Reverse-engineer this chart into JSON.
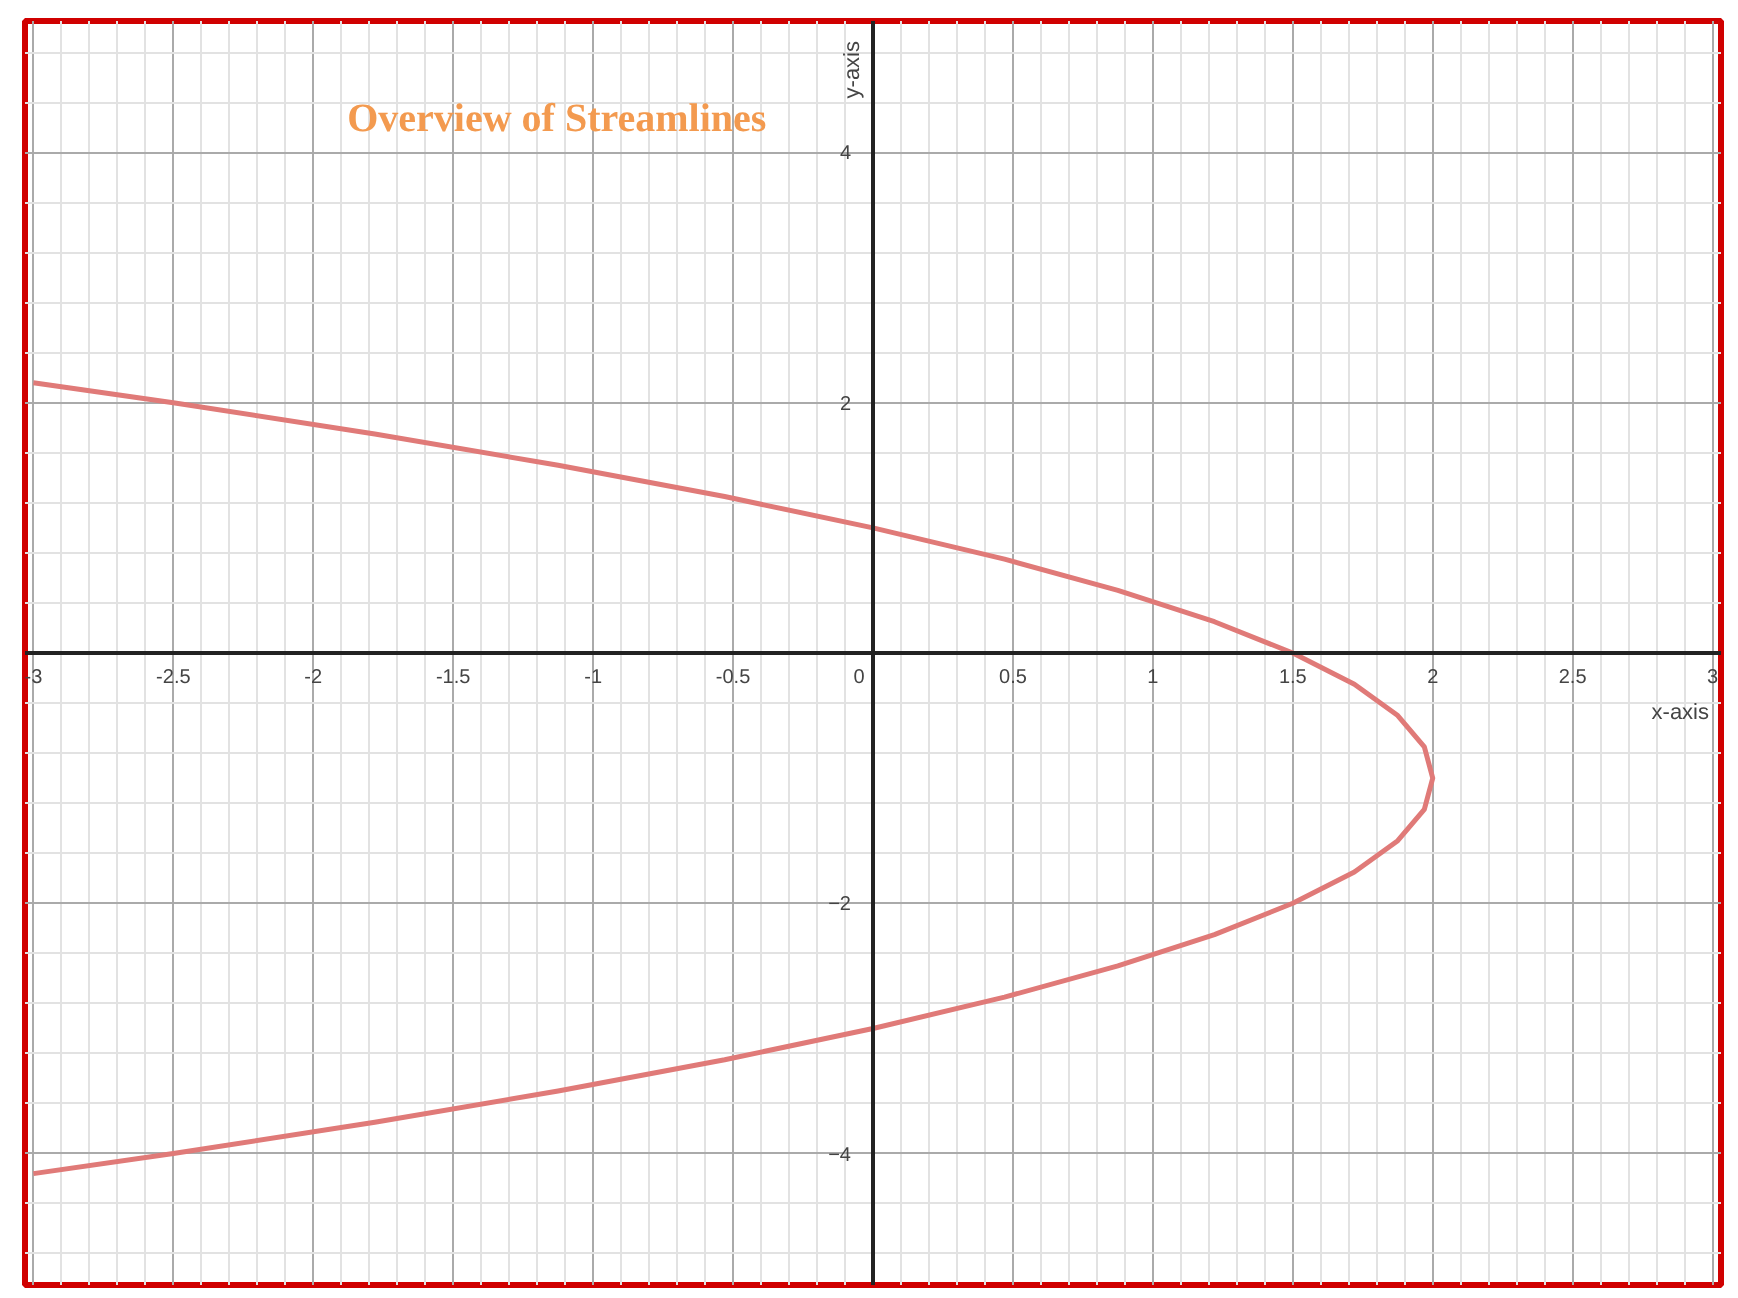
{
  "chart_data": {
    "type": "line",
    "title": "Overview of Streamlines",
    "xlabel": "x-axis",
    "ylabel": "y-axis",
    "series": [
      {
        "color": "#e07a78",
        "x": [
          -3.0,
          -2.5,
          -1.78,
          -1.125,
          -0.53,
          0,
          0.47,
          0.875,
          1.22,
          1.5,
          1.72,
          1.875,
          1.97,
          2,
          1.97,
          1.875,
          1.72,
          1.5,
          1.22,
          0.875,
          0.47,
          0,
          -0.53,
          -1.125,
          -1.78,
          -2.5,
          -3.0
        ],
        "values": [
          2.16,
          2,
          1.75,
          1.5,
          1.25,
          1,
          0.75,
          0.5,
          0.25,
          0,
          -0.25,
          -0.5,
          -0.75,
          -1,
          -1.25,
          -1.5,
          -1.75,
          -2,
          -2.25,
          -2.5,
          -2.75,
          -3,
          -3.25,
          -3.5,
          -3.75,
          -4,
          -4.16
        ]
      }
    ],
    "xlim": [
      -3.03,
      3.03
    ],
    "ylim": [
      -5.05,
      5.05
    ],
    "xticks": [
      -3,
      -2.5,
      -2,
      -1.5,
      -1,
      -0.5,
      0,
      0.5,
      1,
      1.5,
      2,
      2.5,
      3
    ],
    "yticks": [
      -4,
      -2,
      2,
      4
    ],
    "grid": true,
    "marker": "none",
    "line_style": "solid"
  }
}
